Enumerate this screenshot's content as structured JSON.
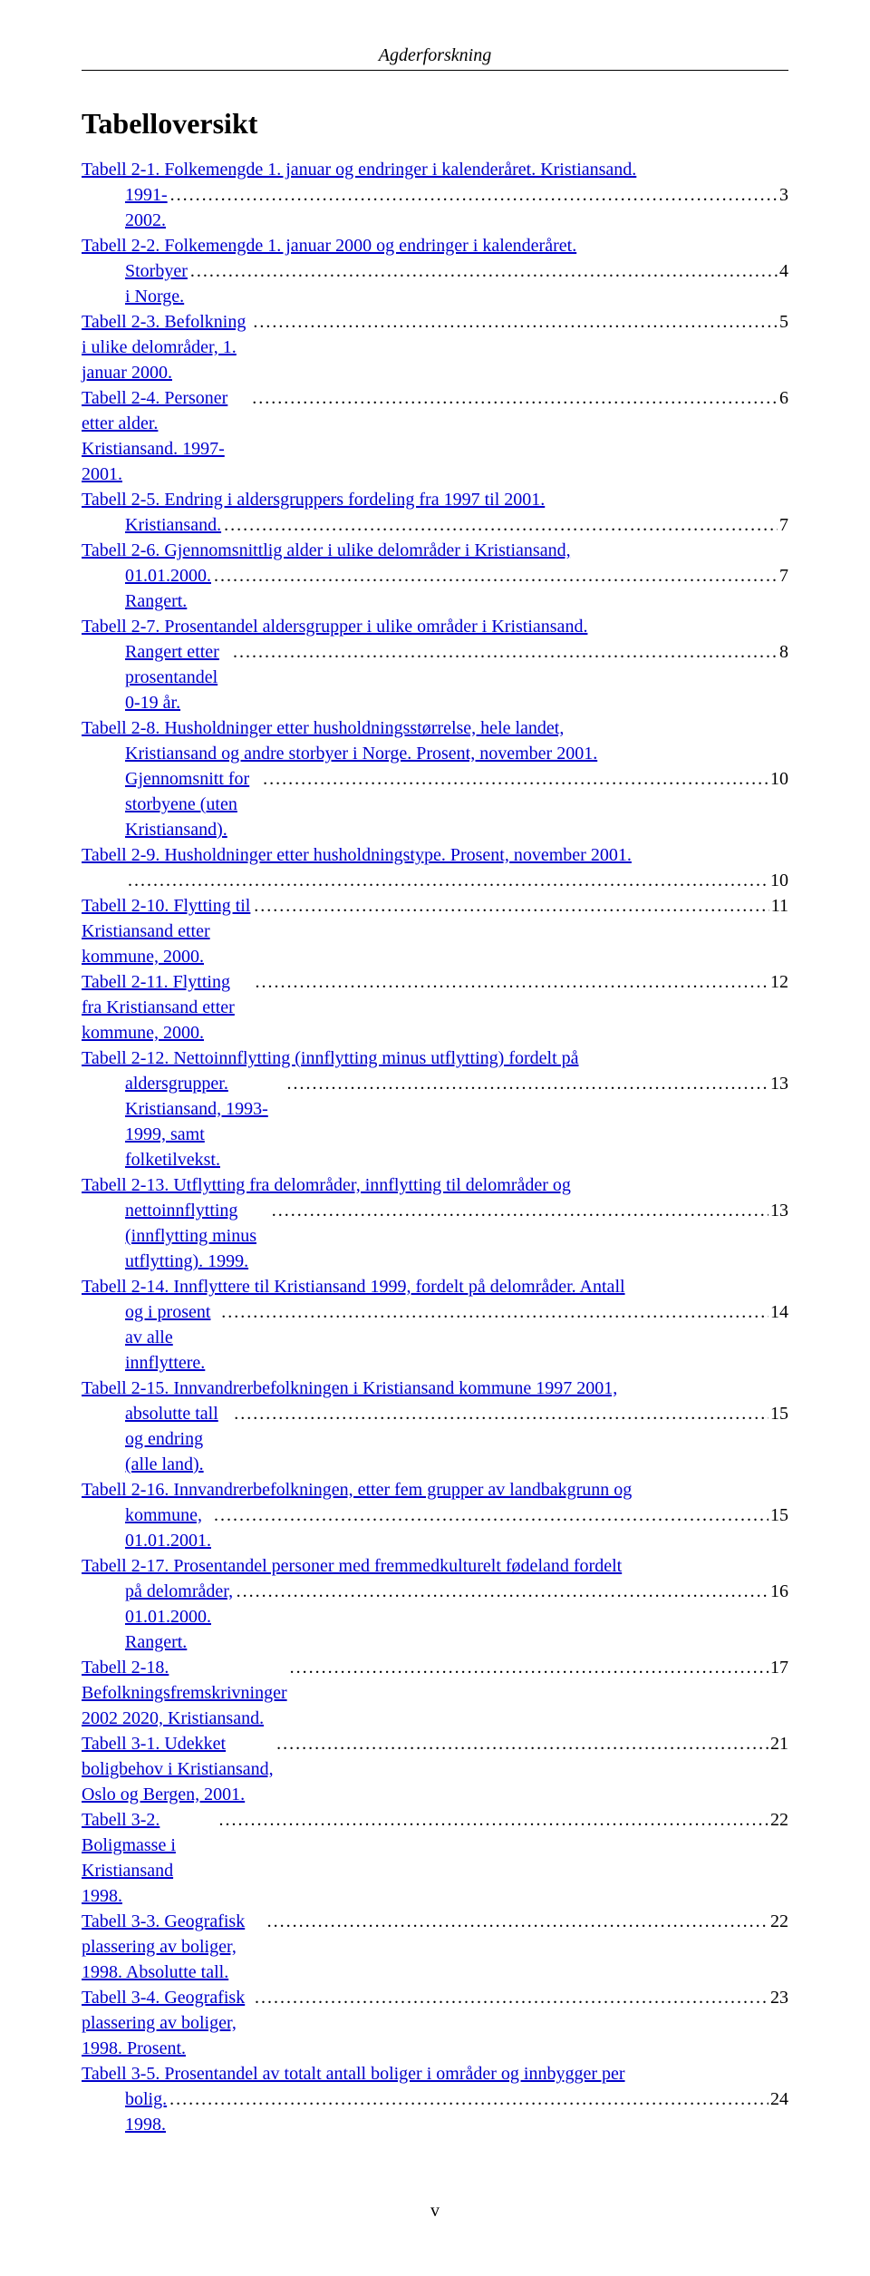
{
  "header": {
    "text": "Agderforskning"
  },
  "title": "Tabelloversikt",
  "entries": [
    {
      "lines": [
        {
          "link": "Tabell 2-1. Folkemengde 1. januar og endringer i kalenderåret. Kristiansand."
        }
      ],
      "tail": {
        "link": "1991-2002.",
        "page": "3"
      }
    },
    {
      "lines": [
        {
          "link": "Tabell 2-2. Folkemengde 1. januar 2000 og endringer i kalenderåret."
        }
      ],
      "tail": {
        "link": "Storbyer i Norge.",
        "page": "4"
      }
    },
    {
      "lines": [],
      "tail": {
        "link": "Tabell 2-3. Befolkning i ulike delområder, 1. januar 2000.",
        "nopad": true,
        "page": "5"
      }
    },
    {
      "lines": [],
      "tail": {
        "link": "Tabell 2-4. Personer etter alder. Kristiansand. 1997-2001.",
        "nopad": true,
        "page": "6"
      }
    },
    {
      "lines": [
        {
          "link": "Tabell 2-5. Endring i aldersgruppers fordeling fra 1997 til 2001."
        }
      ],
      "tail": {
        "link": "Kristiansand.",
        "page": "7"
      }
    },
    {
      "lines": [
        {
          "link": "Tabell 2-6. Gjennomsnittlig alder i ulike delområder i Kristiansand,"
        }
      ],
      "tail": {
        "link": "01.01.2000. Rangert.",
        "page": "7"
      }
    },
    {
      "lines": [
        {
          "link": "Tabell 2-7. Prosentandel aldersgrupper i ulike områder i Kristiansand."
        }
      ],
      "tail": {
        "link": "Rangert etter prosentandel 0-19 år.",
        "page": "8"
      }
    },
    {
      "lines": [
        {
          "link": "Tabell 2-8. Husholdninger etter husholdningsstørrelse, hele landet,"
        },
        {
          "link": "Kristiansand og andre storbyer i Norge. Prosent, november 2001.",
          "indent": true
        }
      ],
      "tail": {
        "link": "Gjennomsnitt for storbyene (uten Kristiansand).",
        "page": "10"
      }
    },
    {
      "lines": [
        {
          "link": "Tabell 2-9. Husholdninger etter husholdningstype. Prosent, november 2001."
        }
      ],
      "tail": {
        "link": "",
        "page": "10"
      }
    },
    {
      "lines": [],
      "tail": {
        "link": "Tabell 2-10. Flytting til Kristiansand etter kommune, 2000.",
        "nopad": true,
        "page": "11"
      }
    },
    {
      "lines": [],
      "tail": {
        "link": "Tabell 2-11. Flytting fra Kristiansand etter kommune, 2000.",
        "nopad": true,
        "page": "12"
      }
    },
    {
      "lines": [
        {
          "link": "Tabell 2-12. Nettoinnflytting (innflytting minus utflytting) fordelt på"
        }
      ],
      "tail": {
        "link": "aldersgrupper. Kristiansand, 1993-1999, samt folketilvekst.",
        "page": "13"
      }
    },
    {
      "lines": [
        {
          "link": "Tabell 2-13. Utflytting fra delområder, innflytting til delområder og"
        }
      ],
      "tail": {
        "link": "nettoinnflytting (innflytting minus utflytting). 1999.",
        "page": "13"
      }
    },
    {
      "lines": [
        {
          "link": "Tabell 2-14. Innflyttere til Kristiansand 1999, fordelt på delområder. Antall"
        }
      ],
      "tail": {
        "link": "og i prosent av alle innflyttere.",
        "page": "14"
      }
    },
    {
      "lines": [
        {
          "link": "Tabell 2-15. Innvandrerbefolkningen i Kristiansand kommune 1997 2001,"
        }
      ],
      "tail": {
        "link": "absolutte tall og endring (alle land).",
        "page": "15"
      }
    },
    {
      "lines": [
        {
          "link": "Tabell 2-16. Innvandrerbefolkningen, etter fem grupper av landbakgrunn og"
        }
      ],
      "tail": {
        "link": "kommune, 01.01.2001.",
        "page": "15"
      }
    },
    {
      "lines": [
        {
          "link": "Tabell 2-17. Prosentandel personer med fremmedkulturelt fødeland fordelt"
        }
      ],
      "tail": {
        "link": "på delområder, 01.01.2000. Rangert.",
        "page": "16"
      }
    },
    {
      "lines": [],
      "tail": {
        "link": "Tabell 2-18. Befolkningsfremskrivninger 2002   2020, Kristiansand.",
        "nopad": true,
        "page": "17"
      }
    },
    {
      "lines": [],
      "tail": {
        "link": "Tabell 3-1. Udekket boligbehov i Kristiansand, Oslo og Bergen, 2001.",
        "nopad": true,
        "page": "21"
      }
    },
    {
      "lines": [],
      "tail": {
        "link": "Tabell 3-2. Boligmasse i Kristiansand 1998.",
        "nopad": true,
        "page": "22"
      }
    },
    {
      "lines": [],
      "tail": {
        "link": "Tabell 3-3. Geografisk plassering av boliger, 1998. Absolutte tall.",
        "nopad": true,
        "page": "22"
      }
    },
    {
      "lines": [],
      "tail": {
        "link": "Tabell 3-4. Geografisk plassering av boliger, 1998. Prosent.",
        "nopad": true,
        "page": "23"
      }
    },
    {
      "lines": [
        {
          "link": "Tabell 3-5. Prosentandel av totalt antall boliger i områder og innbygger per"
        }
      ],
      "tail": {
        "link": "bolig. 1998.",
        "page": "24"
      }
    }
  ],
  "footer": {
    "text": "v"
  }
}
